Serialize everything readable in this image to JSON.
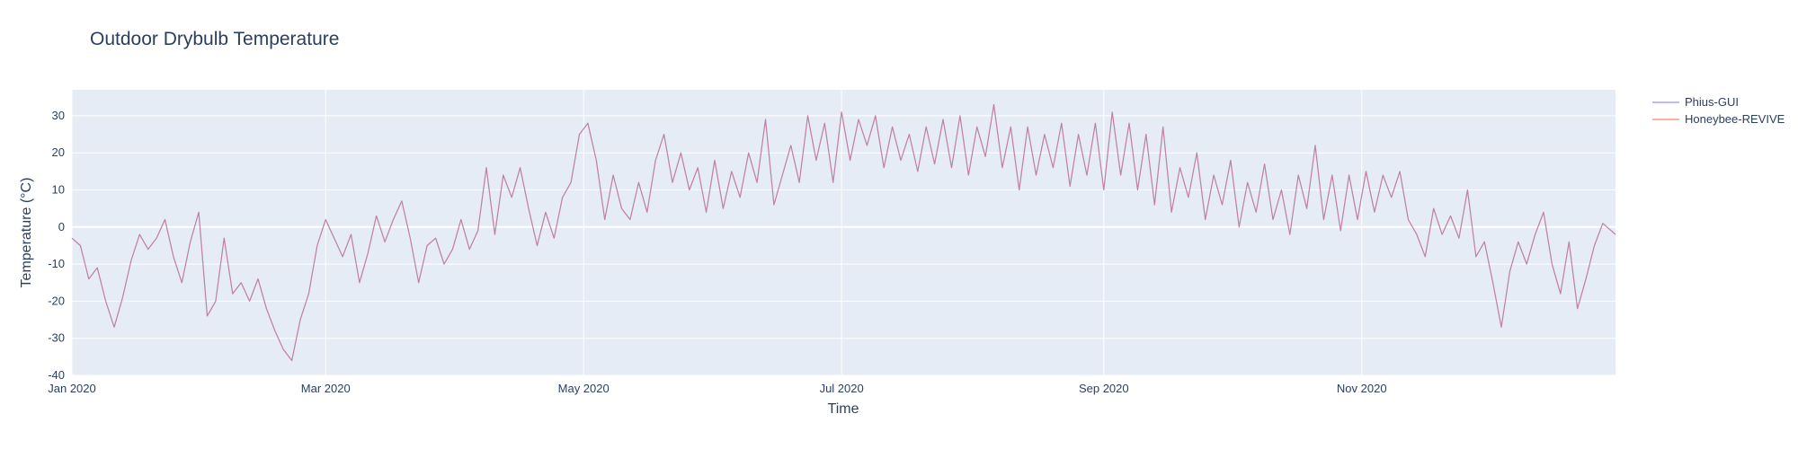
{
  "chart_data": {
    "type": "line",
    "title": "Outdoor Drybulb Temperature",
    "xlabel": "Time",
    "ylabel": "Temperature (°C)",
    "x_range": [
      "2020-01-01",
      "2020-12-31"
    ],
    "ylim": [
      -40,
      37
    ],
    "y_ticks": [
      -40,
      -30,
      -20,
      -10,
      0,
      10,
      20,
      30
    ],
    "x_ticks": [
      {
        "date": "2020-01-01",
        "label": "Jan 2020"
      },
      {
        "date": "2020-03-01",
        "label": "Mar 2020"
      },
      {
        "date": "2020-05-01",
        "label": "May 2020"
      },
      {
        "date": "2020-07-01",
        "label": "Jul 2020"
      },
      {
        "date": "2020-09-01",
        "label": "Sep 2020"
      },
      {
        "date": "2020-11-01",
        "label": "Nov 2020"
      }
    ],
    "grid": true,
    "legend_position": "top-right",
    "plot_bg": "#e5ecf6",
    "series": [
      {
        "name": "Phius-GUI",
        "color": "#636efa",
        "opacity": 0.55,
        "points": [
          [
            "2020-01-01",
            -3
          ],
          [
            "2020-01-03",
            -5
          ],
          [
            "2020-01-05",
            -14
          ],
          [
            "2020-01-07",
            -11
          ],
          [
            "2020-01-09",
            -20
          ],
          [
            "2020-01-11",
            -27
          ],
          [
            "2020-01-13",
            -19
          ],
          [
            "2020-01-15",
            -9
          ],
          [
            "2020-01-17",
            -2
          ],
          [
            "2020-01-19",
            -6
          ],
          [
            "2020-01-21",
            -3
          ],
          [
            "2020-01-23",
            2
          ],
          [
            "2020-01-25",
            -8
          ],
          [
            "2020-01-27",
            -15
          ],
          [
            "2020-01-29",
            -4
          ],
          [
            "2020-01-31",
            4
          ],
          [
            "2020-02-02",
            -24
          ],
          [
            "2020-02-04",
            -20
          ],
          [
            "2020-02-06",
            -3
          ],
          [
            "2020-02-08",
            -18
          ],
          [
            "2020-02-10",
            -15
          ],
          [
            "2020-02-12",
            -20
          ],
          [
            "2020-02-14",
            -14
          ],
          [
            "2020-02-16",
            -22
          ],
          [
            "2020-02-18",
            -28
          ],
          [
            "2020-02-20",
            -33
          ],
          [
            "2020-02-22",
            -36
          ],
          [
            "2020-02-24",
            -25
          ],
          [
            "2020-02-26",
            -18
          ],
          [
            "2020-02-28",
            -5
          ],
          [
            "2020-03-01",
            2
          ],
          [
            "2020-03-03",
            -3
          ],
          [
            "2020-03-05",
            -8
          ],
          [
            "2020-03-07",
            -2
          ],
          [
            "2020-03-09",
            -15
          ],
          [
            "2020-03-11",
            -7
          ],
          [
            "2020-03-13",
            3
          ],
          [
            "2020-03-15",
            -4
          ],
          [
            "2020-03-17",
            2
          ],
          [
            "2020-03-19",
            7
          ],
          [
            "2020-03-21",
            -3
          ],
          [
            "2020-03-23",
            -15
          ],
          [
            "2020-03-25",
            -5
          ],
          [
            "2020-03-27",
            -3
          ],
          [
            "2020-03-29",
            -10
          ],
          [
            "2020-03-31",
            -6
          ],
          [
            "2020-04-02",
            2
          ],
          [
            "2020-04-04",
            -6
          ],
          [
            "2020-04-06",
            -1
          ],
          [
            "2020-04-08",
            16
          ],
          [
            "2020-04-10",
            -2
          ],
          [
            "2020-04-12",
            14
          ],
          [
            "2020-04-14",
            8
          ],
          [
            "2020-04-16",
            16
          ],
          [
            "2020-04-18",
            5
          ],
          [
            "2020-04-20",
            -5
          ],
          [
            "2020-04-22",
            4
          ],
          [
            "2020-04-24",
            -3
          ],
          [
            "2020-04-26",
            8
          ],
          [
            "2020-04-28",
            12
          ],
          [
            "2020-04-30",
            25
          ],
          [
            "2020-05-02",
            28
          ],
          [
            "2020-05-04",
            18
          ],
          [
            "2020-05-06",
            2
          ],
          [
            "2020-05-08",
            14
          ],
          [
            "2020-05-10",
            5
          ],
          [
            "2020-05-12",
            2
          ],
          [
            "2020-05-14",
            12
          ],
          [
            "2020-05-16",
            4
          ],
          [
            "2020-05-18",
            18
          ],
          [
            "2020-05-20",
            25
          ],
          [
            "2020-05-22",
            12
          ],
          [
            "2020-05-24",
            20
          ],
          [
            "2020-05-26",
            10
          ],
          [
            "2020-05-28",
            16
          ],
          [
            "2020-05-30",
            4
          ],
          [
            "2020-06-01",
            18
          ],
          [
            "2020-06-03",
            5
          ],
          [
            "2020-06-05",
            15
          ],
          [
            "2020-06-07",
            8
          ],
          [
            "2020-06-09",
            20
          ],
          [
            "2020-06-11",
            12
          ],
          [
            "2020-06-13",
            29
          ],
          [
            "2020-06-15",
            6
          ],
          [
            "2020-06-17",
            14
          ],
          [
            "2020-06-19",
            22
          ],
          [
            "2020-06-21",
            12
          ],
          [
            "2020-06-23",
            30
          ],
          [
            "2020-06-25",
            18
          ],
          [
            "2020-06-27",
            28
          ],
          [
            "2020-06-29",
            12
          ],
          [
            "2020-07-01",
            31
          ],
          [
            "2020-07-03",
            18
          ],
          [
            "2020-07-05",
            29
          ],
          [
            "2020-07-07",
            22
          ],
          [
            "2020-07-09",
            30
          ],
          [
            "2020-07-11",
            16
          ],
          [
            "2020-07-13",
            27
          ],
          [
            "2020-07-15",
            18
          ],
          [
            "2020-07-17",
            25
          ],
          [
            "2020-07-19",
            15
          ],
          [
            "2020-07-21",
            27
          ],
          [
            "2020-07-23",
            17
          ],
          [
            "2020-07-25",
            29
          ],
          [
            "2020-07-27",
            16
          ],
          [
            "2020-07-29",
            30
          ],
          [
            "2020-07-31",
            14
          ],
          [
            "2020-08-02",
            27
          ],
          [
            "2020-08-04",
            19
          ],
          [
            "2020-08-06",
            33
          ],
          [
            "2020-08-08",
            16
          ],
          [
            "2020-08-10",
            27
          ],
          [
            "2020-08-12",
            10
          ],
          [
            "2020-08-14",
            27
          ],
          [
            "2020-08-16",
            14
          ],
          [
            "2020-08-18",
            25
          ],
          [
            "2020-08-20",
            16
          ],
          [
            "2020-08-22",
            28
          ],
          [
            "2020-08-24",
            11
          ],
          [
            "2020-08-26",
            25
          ],
          [
            "2020-08-28",
            14
          ],
          [
            "2020-08-30",
            28
          ],
          [
            "2020-09-01",
            10
          ],
          [
            "2020-09-03",
            31
          ],
          [
            "2020-09-05",
            14
          ],
          [
            "2020-09-07",
            28
          ],
          [
            "2020-09-09",
            10
          ],
          [
            "2020-09-11",
            25
          ],
          [
            "2020-09-13",
            6
          ],
          [
            "2020-09-15",
            27
          ],
          [
            "2020-09-17",
            4
          ],
          [
            "2020-09-19",
            16
          ],
          [
            "2020-09-21",
            8
          ],
          [
            "2020-09-23",
            20
          ],
          [
            "2020-09-25",
            2
          ],
          [
            "2020-09-27",
            14
          ],
          [
            "2020-09-29",
            6
          ],
          [
            "2020-10-01",
            18
          ],
          [
            "2020-10-03",
            0
          ],
          [
            "2020-10-05",
            12
          ],
          [
            "2020-10-07",
            4
          ],
          [
            "2020-10-09",
            17
          ],
          [
            "2020-10-11",
            2
          ],
          [
            "2020-10-13",
            10
          ],
          [
            "2020-10-15",
            -2
          ],
          [
            "2020-10-17",
            14
          ],
          [
            "2020-10-19",
            5
          ],
          [
            "2020-10-21",
            22
          ],
          [
            "2020-10-23",
            2
          ],
          [
            "2020-10-25",
            14
          ],
          [
            "2020-10-27",
            -1
          ],
          [
            "2020-10-29",
            14
          ],
          [
            "2020-10-31",
            2
          ],
          [
            "2020-11-02",
            15
          ],
          [
            "2020-11-04",
            4
          ],
          [
            "2020-11-06",
            14
          ],
          [
            "2020-11-08",
            8
          ],
          [
            "2020-11-10",
            15
          ],
          [
            "2020-11-12",
            2
          ],
          [
            "2020-11-14",
            -2
          ],
          [
            "2020-11-16",
            -8
          ],
          [
            "2020-11-18",
            5
          ],
          [
            "2020-11-20",
            -2
          ],
          [
            "2020-11-22",
            3
          ],
          [
            "2020-11-24",
            -3
          ],
          [
            "2020-11-26",
            10
          ],
          [
            "2020-11-28",
            -8
          ],
          [
            "2020-11-30",
            -4
          ],
          [
            "2020-12-02",
            -15
          ],
          [
            "2020-12-04",
            -27
          ],
          [
            "2020-12-06",
            -12
          ],
          [
            "2020-12-08",
            -4
          ],
          [
            "2020-12-10",
            -10
          ],
          [
            "2020-12-12",
            -2
          ],
          [
            "2020-12-14",
            4
          ],
          [
            "2020-12-16",
            -10
          ],
          [
            "2020-12-18",
            -18
          ],
          [
            "2020-12-20",
            -4
          ],
          [
            "2020-12-22",
            -22
          ],
          [
            "2020-12-24",
            -14
          ],
          [
            "2020-12-26",
            -5
          ],
          [
            "2020-12-28",
            1
          ],
          [
            "2020-12-31",
            -2
          ]
        ]
      },
      {
        "name": "Honeybee-REVIVE",
        "color": "#ef553b",
        "opacity": 0.45,
        "same_as": "Phius-GUI"
      }
    ]
  }
}
